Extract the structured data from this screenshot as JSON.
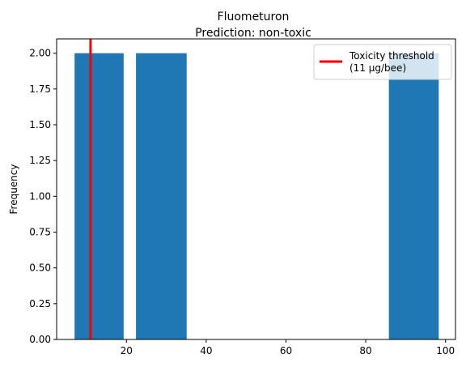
{
  "chart_data": {
    "type": "bar",
    "title": "Fluometuron",
    "subtitle": "Prediction: non-toxic",
    "xlabel": "",
    "ylabel": "Frequency",
    "xlim": [
      2.5,
      102.5
    ],
    "ylim": [
      0,
      2.1
    ],
    "xticks": [
      20,
      40,
      60,
      80,
      100
    ],
    "yticks": [
      0.0,
      0.25,
      0.5,
      0.75,
      1.0,
      1.25,
      1.5,
      1.75,
      2.0
    ],
    "ytick_labels": [
      "0.00",
      "0.25",
      "0.50",
      "0.75",
      "1.00",
      "1.25",
      "1.50",
      "1.75",
      "2.00"
    ],
    "bars": [
      {
        "x0": 7.0,
        "x1": 19.3,
        "value": 2
      },
      {
        "x0": 22.4,
        "x1": 35.1,
        "value": 2
      },
      {
        "x0": 85.8,
        "x1": 98.3,
        "value": 2
      }
    ],
    "bar_color": "#1f77b4",
    "threshold": {
      "value": 11,
      "color": "#ff0000",
      "label_line1": "Toxicity threshold",
      "label_line2": "(11 µg/bee)"
    },
    "grid": false,
    "legend_position": "top-right"
  }
}
